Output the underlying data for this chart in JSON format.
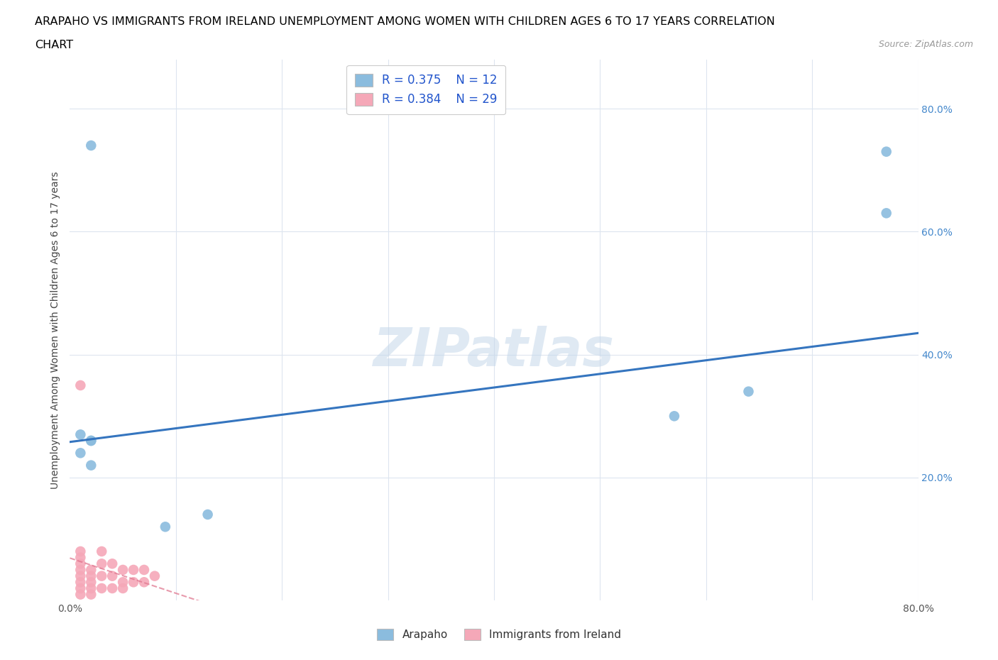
{
  "title_line1": "ARAPAHO VS IMMIGRANTS FROM IRELAND UNEMPLOYMENT AMONG WOMEN WITH CHILDREN AGES 6 TO 17 YEARS CORRELATION",
  "title_line2": "CHART",
  "source": "Source: ZipAtlas.com",
  "ylabel": "Unemployment Among Women with Children Ages 6 to 17 years",
  "xlim": [
    0.0,
    0.8
  ],
  "ylim": [
    0.0,
    0.88
  ],
  "arapaho_x": [
    0.01,
    0.01,
    0.02,
    0.02,
    0.09,
    0.57,
    0.64,
    0.77,
    0.77,
    0.13,
    0.02,
    0.02
  ],
  "arapaho_y": [
    0.27,
    0.24,
    0.26,
    0.22,
    0.12,
    0.3,
    0.34,
    0.63,
    0.73,
    0.14,
    0.26,
    0.74
  ],
  "ireland_x": [
    0.01,
    0.01,
    0.01,
    0.01,
    0.01,
    0.01,
    0.01,
    0.01,
    0.01,
    0.02,
    0.02,
    0.02,
    0.02,
    0.02,
    0.03,
    0.03,
    0.03,
    0.03,
    0.04,
    0.04,
    0.04,
    0.05,
    0.05,
    0.05,
    0.06,
    0.06,
    0.07,
    0.07,
    0.08
  ],
  "ireland_y": [
    0.01,
    0.02,
    0.03,
    0.04,
    0.05,
    0.06,
    0.07,
    0.08,
    0.35,
    0.01,
    0.02,
    0.03,
    0.04,
    0.05,
    0.02,
    0.04,
    0.06,
    0.08,
    0.02,
    0.04,
    0.06,
    0.02,
    0.03,
    0.05,
    0.03,
    0.05,
    0.03,
    0.05,
    0.04
  ],
  "arapaho_color": "#8bbcde",
  "ireland_color": "#f5a8b8",
  "arapaho_line_color": "#3575bf",
  "ireland_line_color": "#e07890",
  "R_arapaho": 0.375,
  "N_arapaho": 12,
  "R_ireland": 0.384,
  "N_ireland": 29,
  "watermark": "ZIPatlas",
  "watermark_color": "#c5d8ea",
  "background_color": "#ffffff",
  "grid_color": "#dde5ef",
  "title_fontsize": 11.5,
  "axis_label_fontsize": 10,
  "tick_fontsize": 10,
  "legend_fontsize": 12
}
